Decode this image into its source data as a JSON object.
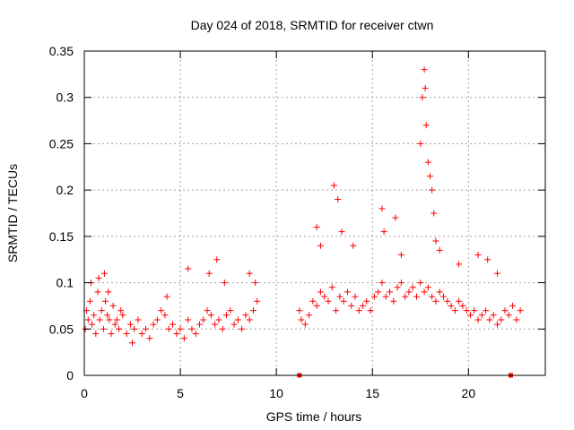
{
  "chart_data": {
    "type": "scatter",
    "title": "Day 024 of 2018, SRMTID for receiver ctwn",
    "xlabel": "GPS time / hours",
    "ylabel": "SRMTID / TECUs",
    "xlim": [
      0,
      24
    ],
    "ylim": [
      0,
      0.35
    ],
    "grid": true,
    "xticks": [
      0,
      5,
      10,
      15,
      20
    ],
    "xtick_labels": [
      "0",
      "5",
      "10",
      "15",
      "20"
    ],
    "yticks": [
      0,
      0.05,
      0.1,
      0.15,
      0.2,
      0.25,
      0.3,
      0.35
    ],
    "ytick_labels": [
      "0",
      "0.05",
      "0.1",
      "0.15",
      "0.2",
      "0.25",
      "0.3",
      "0.35"
    ],
    "marker": "plus",
    "color": "#ff0000",
    "series": [
      {
        "name": "SRMTID",
        "x": [
          0.05,
          0.12,
          0.2,
          0.3,
          0.4,
          0.5,
          0.6,
          0.7,
          0.8,
          0.9,
          1.0,
          1.1,
          1.2,
          1.3,
          1.4,
          1.5,
          1.6,
          1.7,
          1.8,
          1.9,
          2.0,
          2.2,
          2.4,
          2.6,
          2.8,
          3.0,
          3.2,
          3.4,
          3.6,
          3.8,
          4.0,
          4.2,
          4.4,
          4.6,
          4.8,
          5.0,
          5.2,
          5.4,
          5.6,
          5.8,
          6.0,
          6.2,
          6.4,
          6.6,
          6.8,
          7.0,
          7.2,
          7.4,
          7.6,
          7.8,
          8.0,
          8.2,
          8.4,
          8.6,
          8.8,
          9.0,
          0.35,
          0.75,
          1.05,
          1.25,
          2.5,
          4.3,
          5.4,
          6.5,
          6.9,
          7.3,
          8.6,
          8.9,
          11.2,
          11.3,
          11.5,
          11.7,
          11.9,
          12.1,
          12.3,
          12.5,
          12.7,
          12.9,
          13.1,
          13.3,
          13.5,
          13.7,
          13.9,
          14.1,
          14.3,
          14.5,
          14.7,
          14.9,
          15.1,
          15.3,
          15.5,
          15.7,
          15.9,
          16.1,
          16.3,
          16.5,
          16.7,
          16.9,
          17.1,
          17.3,
          17.5,
          17.7,
          17.9,
          18.1,
          18.3,
          18.5,
          18.7,
          18.9,
          19.1,
          19.3,
          19.5,
          19.7,
          19.9,
          20.1,
          20.3,
          20.5,
          20.7,
          20.9,
          21.1,
          21.3,
          21.5,
          21.7,
          21.9,
          22.1,
          22.3,
          22.5,
          22.7,
          12.1,
          12.3,
          13.0,
          13.2,
          13.4,
          14.0,
          15.5,
          15.6,
          16.2,
          16.5,
          17.5,
          17.6,
          17.7,
          17.75,
          17.8,
          17.9,
          18.0,
          18.1,
          18.2,
          18.3,
          18.5,
          19.5,
          20.5,
          21.0,
          21.5,
          11.2,
          22.2
        ],
        "y": [
          0.05,
          0.07,
          0.06,
          0.08,
          0.055,
          0.065,
          0.045,
          0.09,
          0.06,
          0.07,
          0.05,
          0.08,
          0.065,
          0.06,
          0.045,
          0.075,
          0.055,
          0.06,
          0.05,
          0.07,
          0.065,
          0.045,
          0.055,
          0.05,
          0.06,
          0.045,
          0.05,
          0.04,
          0.055,
          0.06,
          0.07,
          0.065,
          0.05,
          0.055,
          0.045,
          0.05,
          0.04,
          0.06,
          0.05,
          0.045,
          0.055,
          0.06,
          0.07,
          0.065,
          0.055,
          0.06,
          0.05,
          0.065,
          0.07,
          0.055,
          0.06,
          0.05,
          0.065,
          0.06,
          0.07,
          0.08,
          0.1,
          0.105,
          0.11,
          0.09,
          0.035,
          0.085,
          0.115,
          0.11,
          0.125,
          0.1,
          0.11,
          0.1,
          0.07,
          0.06,
          0.055,
          0.065,
          0.08,
          0.075,
          0.09,
          0.085,
          0.08,
          0.095,
          0.07,
          0.085,
          0.08,
          0.09,
          0.075,
          0.085,
          0.07,
          0.075,
          0.08,
          0.07,
          0.085,
          0.09,
          0.1,
          0.085,
          0.09,
          0.08,
          0.095,
          0.1,
          0.085,
          0.09,
          0.095,
          0.085,
          0.1,
          0.09,
          0.095,
          0.085,
          0.08,
          0.09,
          0.085,
          0.08,
          0.075,
          0.07,
          0.08,
          0.075,
          0.07,
          0.065,
          0.07,
          0.06,
          0.065,
          0.07,
          0.06,
          0.065,
          0.055,
          0.06,
          0.07,
          0.065,
          0.075,
          0.06,
          0.07,
          0.16,
          0.14,
          0.205,
          0.19,
          0.155,
          0.14,
          0.18,
          0.155,
          0.17,
          0.13,
          0.25,
          0.3,
          0.33,
          0.31,
          0.27,
          0.23,
          0.215,
          0.2,
          0.175,
          0.145,
          0.135,
          0.12,
          0.13,
          0.125,
          0.11,
          0.0,
          0.0
        ]
      }
    ]
  }
}
